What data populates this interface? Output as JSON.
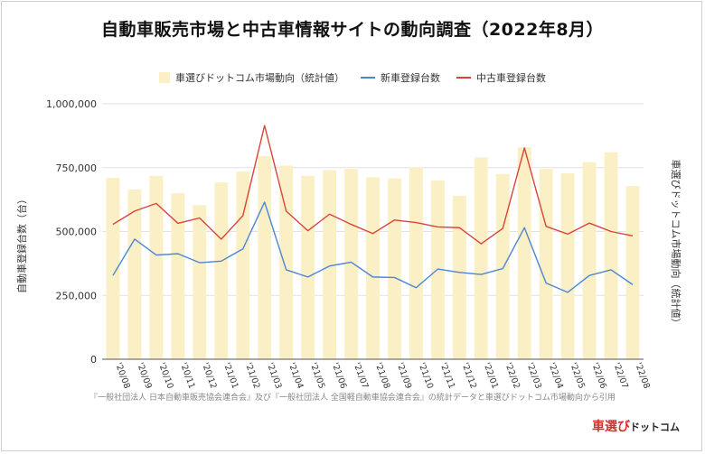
{
  "title": "自動車販売市場と中古車情報サイトの動向調査（2022年8月）",
  "legend": [
    {
      "label": "車選びドットコム市場動向（統計値）",
      "kind": "bar",
      "color": "#fbefc5"
    },
    {
      "label": "新車登録台数",
      "kind": "line",
      "color": "#4a86d4"
    },
    {
      "label": "中古車登録台数",
      "kind": "line",
      "color": "#d9443a"
    }
  ],
  "source": "『一般社団法人 日本自動車販売協会連合会』及び『一般社団法人 全国軽自動車協会連合会』の統計データと車選びドットコム市場動向から引用",
  "logo": {
    "part1": "車選び",
    "part2": "ドットコム"
  },
  "chart_data": {
    "type": "bar+line",
    "title": "自動車販売市場と中古車情報サイトの動向調査（2022年8月）",
    "ylabel": "自動車登録台数（台）",
    "ylabel_right": "車選びドットコム市場動向（統計値）",
    "ylim": [
      0,
      1000000
    ],
    "yticks": [
      "0",
      "250,000",
      "500,000",
      "750,000",
      "1,000,000"
    ],
    "ytick_values": [
      0,
      250000,
      500000,
      750000,
      1000000
    ],
    "grid": true,
    "legend_position": "top",
    "categories": [
      "'20/08",
      "'20/09",
      "'20/10",
      "'20/11",
      "'20/12",
      "'21/01",
      "'21/02",
      "'21/03",
      "'21/04",
      "'21/05",
      "'21/06",
      "'21/07",
      "'21/08",
      "'21/09",
      "'21/10",
      "'21/11",
      "'21/12",
      "'22/01",
      "'22/02",
      "'22/03",
      "'22/04",
      "'22/05",
      "'22/06",
      "'22/07",
      "'22/08"
    ],
    "series": [
      {
        "name": "車選びドットコム市場動向（統計値）",
        "type": "bar",
        "color": "#fbefc5",
        "values": [
          710000,
          665000,
          718000,
          650000,
          603000,
          692000,
          735000,
          795000,
          758000,
          718000,
          740000,
          745000,
          712000,
          708000,
          752000,
          700000,
          640000,
          790000,
          725000,
          830000,
          745000,
          728000,
          772000,
          810000,
          678000
        ]
      },
      {
        "name": "新車登録台数",
        "type": "line",
        "color": "#4a86d4",
        "values": [
          328000,
          470000,
          408000,
          413000,
          378000,
          384000,
          432000,
          615000,
          350000,
          322000,
          365000,
          380000,
          322000,
          320000,
          280000,
          353000,
          340000,
          332000,
          355000,
          515000,
          298000,
          262000,
          328000,
          350000,
          292000
        ]
      },
      {
        "name": "中古車登録台数",
        "type": "line",
        "color": "#d9443a",
        "values": [
          528000,
          580000,
          610000,
          532000,
          553000,
          470000,
          562000,
          915000,
          580000,
          503000,
          568000,
          528000,
          492000,
          545000,
          535000,
          518000,
          515000,
          452000,
          512000,
          827000,
          520000,
          490000,
          533000,
          500000,
          483000
        ]
      }
    ]
  }
}
